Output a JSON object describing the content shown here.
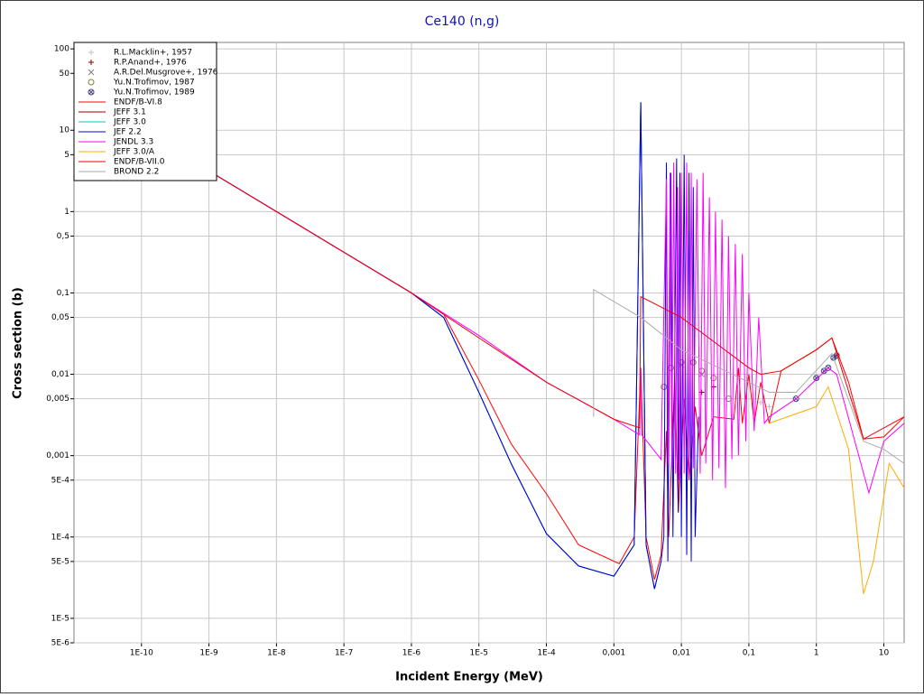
{
  "chart_data": {
    "type": "line",
    "title": "Ce140 (n,g)",
    "xlabel": "Incident Energy (MeV)",
    "ylabel": "Cross section (b)",
    "xscale": "log",
    "yscale": "log",
    "grid": true,
    "legend": "upper left",
    "xlim": [
      1e-11,
      20
    ],
    "ylim": [
      5e-06,
      120
    ],
    "xticks": [
      {
        "value": 1e-10,
        "label": "1E-10"
      },
      {
        "value": 1e-09,
        "label": "1E-9"
      },
      {
        "value": 1e-08,
        "label": "1E-8"
      },
      {
        "value": 1e-07,
        "label": "1E-7"
      },
      {
        "value": 1e-06,
        "label": "1E-6"
      },
      {
        "value": 1e-05,
        "label": "1E-5"
      },
      {
        "value": 0.0001,
        "label": "1E-4"
      },
      {
        "value": 0.001,
        "label": "0,001"
      },
      {
        "value": 0.01,
        "label": "0,01"
      },
      {
        "value": 0.1,
        "label": "0,1"
      },
      1,
      10
    ],
    "yticks": [
      100,
      50,
      10,
      5,
      1,
      {
        "value": 0.5,
        "label": "0,5"
      },
      {
        "value": 0.1,
        "label": "0,1"
      },
      {
        "value": 0.05,
        "label": "0,05"
      },
      {
        "value": 0.01,
        "label": "0,01"
      },
      {
        "value": 0.005,
        "label": "0,005"
      },
      {
        "value": 0.001,
        "label": "0,001"
      },
      {
        "value": 0.0005,
        "label": "5E-4"
      },
      {
        "value": 0.0001,
        "label": "1E-4"
      },
      {
        "value": 5e-05,
        "label": "5E-5"
      },
      {
        "value": 1e-05,
        "label": "1E-5"
      },
      {
        "value": 5e-06,
        "label": "5E-6"
      }
    ],
    "series": [
      {
        "name": "R.L.Macklin+, 1957",
        "marker": "plus",
        "color": "#c0c0c0",
        "x": [
          0.15,
          0.2
        ],
        "values": [
          0.0045,
          0.004
        ]
      },
      {
        "name": "R.P.Anand+, 1976",
        "marker": "plus",
        "color": "#800000",
        "x": [
          0.02,
          0.03
        ],
        "values": [
          0.006,
          0.007
        ]
      },
      {
        "name": "A.R.Del.Musgrove+, 1976",
        "marker": "cross",
        "color": "#808080",
        "x": [
          0.01,
          0.02
        ],
        "values": [
          0.013,
          0.01
        ]
      },
      {
        "name": "Yu.N.Trofimov, 1987",
        "marker": "circle",
        "color": "#808040",
        "x": [
          0.0055,
          0.007,
          0.01,
          0.015,
          0.02,
          0.03,
          0.05
        ],
        "values": [
          0.007,
          0.012,
          0.014,
          0.014,
          0.011,
          0.009,
          0.005
        ]
      },
      {
        "name": "Yu.N.Trofimov, 1989",
        "marker": "circlecross",
        "color": "#404080",
        "x": [
          0.5,
          1,
          1.3,
          1.5,
          1.8,
          2
        ],
        "values": [
          0.005,
          0.009,
          0.011,
          0.012,
          0.016,
          0.017
        ]
      },
      {
        "name": "ENDF/B-VI.8",
        "color": "#ff0000",
        "x": [
          1e-11,
          1e-06,
          3e-06,
          1e-05,
          3e-05,
          0.0001,
          0.0003,
          0.0012,
          0.002,
          0.0025,
          0.003,
          0.004,
          0.005,
          0.006,
          0.0065,
          0.008,
          0.009,
          0.011,
          0.013,
          0.016,
          0.02,
          0.03,
          0.06,
          0.07,
          0.08,
          0.1,
          0.12,
          0.15,
          0.2,
          0.3,
          1,
          1.7,
          3,
          5,
          10,
          20
        ],
        "values": [
          31.6,
          0.1,
          0.055,
          0.0085,
          0.0014,
          0.00034,
          8e-05,
          4.7e-05,
          0.0001,
          0.012,
          0.0001,
          3e-05,
          6e-05,
          0.002,
          0.0001,
          0.01,
          0.0002,
          0.005,
          0.0005,
          0.004,
          0.001,
          0.003,
          0.0028,
          0.012,
          0.0025,
          0.01,
          0.0025,
          0.008,
          0.0025,
          0.011,
          0.02,
          0.028,
          0.008,
          0.0016,
          0.0017,
          0.003
        ]
      },
      {
        "name": "JEFF 3.1",
        "color": "#990000",
        "x": [
          1e-11,
          1e-06,
          3e-06,
          1e-05,
          3e-05,
          0.0001,
          0.0003,
          0.001,
          0.002,
          0.0025,
          0.003,
          0.004,
          0.005
        ],
        "values": [
          31.6,
          0.1,
          0.05,
          0.006,
          0.0008,
          0.00011,
          4.4e-05,
          3.3e-05,
          8e-05,
          22,
          8e-05,
          2.3e-05,
          5e-05
        ]
      },
      {
        "name": "JEFF 3.0",
        "color": "#00cccc",
        "x": [
          1e-11,
          1e-06,
          3e-06,
          1e-05,
          3e-05,
          0.0001,
          0.0003,
          0.001,
          0.002,
          0.0025,
          0.003,
          0.004,
          0.005
        ],
        "values": [
          31.6,
          0.1,
          0.05,
          0.006,
          0.0008,
          0.00011,
          4.4e-05,
          3.3e-05,
          8e-05,
          22,
          8e-05,
          2.3e-05,
          5e-05
        ]
      },
      {
        "name": "JEF 2.2",
        "color": "#0000dd",
        "x": [
          1e-11,
          1e-06,
          3e-06,
          1e-05,
          3e-05,
          0.0001,
          0.0003,
          0.001,
          0.002,
          0.0025,
          0.003,
          0.004,
          0.005,
          0.0055,
          0.006,
          0.0063,
          0.007,
          0.0075,
          0.0085,
          0.009,
          0.0095,
          0.01,
          0.011,
          0.012,
          0.013,
          0.014,
          0.015,
          0.016,
          0.018
        ],
        "values": [
          31.6,
          0.1,
          0.05,
          0.006,
          0.0008,
          0.00011,
          4.4e-05,
          3.3e-05,
          8e-05,
          22,
          8e-05,
          2.3e-05,
          5e-05,
          0.0001,
          4,
          5e-05,
          3,
          0.0001,
          4.5,
          0.0002,
          3,
          0.0001,
          5,
          6e-05,
          3,
          5e-05,
          2,
          0.0001,
          0.003
        ]
      },
      {
        "name": "JENDL 3.3",
        "color": "#ff00ff",
        "x": [
          1e-11,
          1e-06,
          1e-05,
          0.0001,
          0.001,
          0.0024,
          0.0025,
          0.0026,
          0.005,
          0.006,
          0.0064,
          0.0068,
          0.0072,
          0.0077,
          0.0082,
          0.0088,
          0.0094,
          0.01,
          0.011,
          0.012,
          0.013,
          0.014,
          0.015,
          0.017,
          0.019,
          0.021,
          0.023,
          0.026,
          0.029,
          0.032,
          0.036,
          0.04,
          0.045,
          0.05,
          0.056,
          0.063,
          0.07,
          0.08,
          0.09,
          0.1,
          0.12,
          0.14,
          0.17,
          0.2,
          0.5,
          1.5,
          2,
          4,
          6,
          10,
          20
        ],
        "values": [
          31.6,
          0.1,
          0.03,
          0.008,
          0.0028,
          0.0018,
          0.012,
          0.0018,
          0.0009,
          2.5,
          0.0008,
          3,
          0.0007,
          4,
          0.0006,
          2,
          0.0005,
          3,
          0.0006,
          4,
          0.0005,
          3,
          0.0007,
          2.5,
          0.0006,
          3,
          0.0008,
          1.5,
          0.0005,
          1,
          0.0007,
          0.8,
          0.0004,
          0.5,
          0.0009,
          0.4,
          0.001,
          0.3,
          0.0015,
          0.1,
          0.002,
          0.05,
          0.0025,
          0.003,
          0.005,
          0.012,
          0.01,
          0.0012,
          0.00035,
          0.0015,
          0.0025
        ]
      },
      {
        "name": "JEFF 3.0/A",
        "color": "#ffaa00",
        "x": [
          0.2,
          1,
          1.5,
          3,
          5,
          7,
          12,
          20
        ],
        "values": [
          0.0025,
          0.004,
          0.007,
          0.0012,
          2e-05,
          5e-05,
          0.0008,
          0.0004
        ]
      },
      {
        "name": "ENDF/B-VII.0",
        "color": "#ee0000",
        "x": [
          1e-11,
          1e-06,
          1e-05,
          0.0001,
          0.001,
          0.0024,
          0.0025,
          0.01,
          0.1,
          0.15,
          0.3,
          1,
          1.7,
          5,
          20
        ],
        "values": [
          31.6,
          0.1,
          0.028,
          0.008,
          0.0028,
          0.0022,
          0.09,
          0.05,
          0.012,
          0.01,
          0.011,
          0.02,
          0.028,
          0.0016,
          0.003
        ]
      },
      {
        "name": "BROND 2.2",
        "color": "#aaaaaa",
        "x": [
          0.0005,
          0.0005,
          0.0025,
          0.01,
          0.1,
          0.2,
          0.5,
          1.7,
          5,
          10,
          20
        ],
        "values": [
          0.003,
          0.11,
          0.05,
          0.02,
          0.008,
          0.006,
          0.006,
          0.018,
          0.0015,
          0.0012,
          0.0008
        ]
      }
    ]
  }
}
